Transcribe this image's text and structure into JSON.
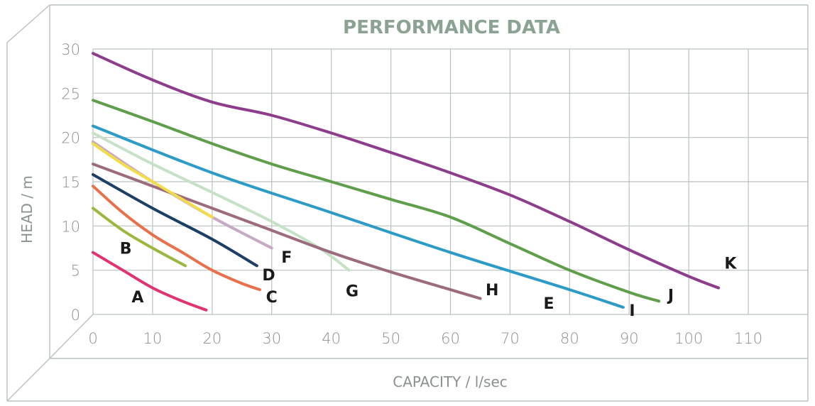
{
  "chart_data": {
    "type": "line",
    "title": "PERFORMANCE DATA",
    "xlabel": "CAPACITY / l/sec",
    "ylabel": "HEAD / m",
    "xlim": [
      0,
      120
    ],
    "ylim": [
      0,
      30
    ],
    "xticks": [
      "0",
      "10",
      "20",
      "30",
      "40",
      "50",
      "60",
      "70",
      "80",
      "90",
      "100",
      "110"
    ],
    "yticks": [
      "0",
      "5",
      "10",
      "15",
      "20",
      "25",
      "30"
    ],
    "grid": true,
    "series": [
      {
        "name": "A",
        "color": "#e2336f",
        "points": [
          [
            0,
            7.0
          ],
          [
            5,
            5.0
          ],
          [
            10,
            3.0
          ],
          [
            15,
            1.5
          ],
          [
            19,
            0.5
          ]
        ]
      },
      {
        "name": "B",
        "color": "#9ab83e",
        "points": [
          [
            0,
            12.0
          ],
          [
            5,
            9.5
          ],
          [
            10,
            7.5
          ],
          [
            15.5,
            5.5
          ]
        ]
      },
      {
        "name": "C",
        "color": "#e8714b",
        "points": [
          [
            0,
            14.5
          ],
          [
            5,
            11.5
          ],
          [
            10,
            9.0
          ],
          [
            15,
            7.0
          ],
          [
            20,
            5.0
          ],
          [
            25,
            3.5
          ],
          [
            28,
            2.8
          ]
        ]
      },
      {
        "name": "D",
        "color": "#1d3f66",
        "points": [
          [
            0,
            15.8
          ],
          [
            10,
            12.0
          ],
          [
            20,
            8.5
          ],
          [
            27.5,
            5.5
          ]
        ]
      },
      {
        "name": "E",
        "color": "#2d9bc8",
        "points": [
          [
            0,
            21.3
          ],
          [
            20,
            16.0
          ],
          [
            40,
            11.5
          ],
          [
            60,
            7.0
          ],
          [
            80,
            2.8
          ],
          [
            89,
            0.8
          ]
        ]
      },
      {
        "name": "F",
        "color": "#c8a9c2",
        "points": [
          [
            0,
            19.5
          ],
          [
            10,
            15.0
          ],
          [
            20,
            11.0
          ],
          [
            30,
            7.5
          ]
        ]
      },
      {
        "name": "G",
        "color": "#c5e2c5",
        "points": [
          [
            0,
            20.5
          ],
          [
            10,
            17.0
          ],
          [
            20,
            13.8
          ],
          [
            30,
            10.5
          ],
          [
            38,
            7.5
          ],
          [
            43,
            5.0
          ]
        ]
      },
      {
        "name": "H",
        "color": "#9c6b7e",
        "points": [
          [
            0,
            17.0
          ],
          [
            10,
            14.5
          ],
          [
            20,
            12.0
          ],
          [
            30,
            9.5
          ],
          [
            40,
            7.0
          ],
          [
            50,
            4.8
          ],
          [
            60,
            2.8
          ],
          [
            65,
            1.8
          ]
        ]
      },
      {
        "name": "I",
        "color": "#f2dc4a",
        "points": [
          [
            0,
            19.3
          ],
          [
            5,
            17.0
          ],
          [
            10,
            15.0
          ],
          [
            15,
            13.0
          ],
          [
            20,
            11.0
          ]
        ]
      },
      {
        "name": "J",
        "color": "#5f9e4a",
        "points": [
          [
            0,
            24.2
          ],
          [
            10,
            21.8
          ],
          [
            20,
            19.3
          ],
          [
            30,
            17.0
          ],
          [
            40,
            15.0
          ],
          [
            50,
            13.0
          ],
          [
            60,
            11.0
          ],
          [
            70,
            8.0
          ],
          [
            80,
            5.0
          ],
          [
            90,
            2.5
          ],
          [
            95,
            1.5
          ]
        ]
      },
      {
        "name": "K",
        "color": "#8e3d8c",
        "points": [
          [
            0,
            29.5
          ],
          [
            10,
            26.5
          ],
          [
            20,
            24.0
          ],
          [
            30,
            22.5
          ],
          [
            40,
            20.5
          ],
          [
            50,
            18.3
          ],
          [
            60,
            16.0
          ],
          [
            70,
            13.5
          ],
          [
            80,
            10.5
          ],
          [
            90,
            7.3
          ],
          [
            100,
            4.3
          ],
          [
            105,
            3.0
          ]
        ]
      }
    ],
    "labels": [
      {
        "text": "A",
        "x": 7.5,
        "y": 2.0
      },
      {
        "text": "B",
        "x": 5.5,
        "y": 7.5
      },
      {
        "text": "C",
        "x": 30,
        "y": 2.0
      },
      {
        "text": "D",
        "x": 29.5,
        "y": 4.5
      },
      {
        "text": "E",
        "x": 76.5,
        "y": 1.3
      },
      {
        "text": "F",
        "x": 32.5,
        "y": 6.5
      },
      {
        "text": "G",
        "x": 43.5,
        "y": 2.7
      },
      {
        "text": "H",
        "x": 67,
        "y": 2.8
      },
      {
        "text": "I",
        "x": 90.5,
        "y": 0.5
      },
      {
        "text": "J",
        "x": 97,
        "y": 2.2
      },
      {
        "text": "K",
        "x": 107,
        "y": 5.8
      }
    ]
  }
}
